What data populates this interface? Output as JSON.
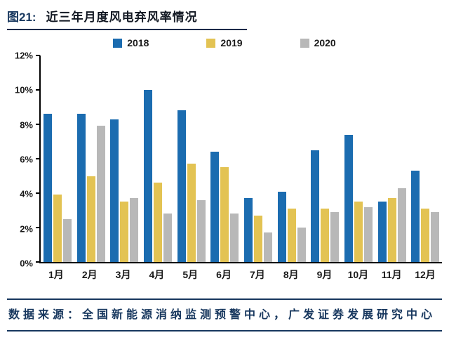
{
  "header": {
    "figure_label": "图21:",
    "title": "近三年月度风电弃风率情况"
  },
  "footer": {
    "source": "数据来源：全国新能源消纳监测预警中心，广发证券发展研究中心"
  },
  "chart_data": {
    "type": "bar",
    "title": "近三年月度风电弃风率情况",
    "categories": [
      "1月",
      "2月",
      "3月",
      "4月",
      "5月",
      "6月",
      "7月",
      "8月",
      "9月",
      "10月",
      "11月",
      "12月"
    ],
    "series": [
      {
        "name": "2018",
        "color": "#1B6CB0",
        "values": [
          8.6,
          8.6,
          8.3,
          10.0,
          8.8,
          6.4,
          3.7,
          4.1,
          6.5,
          7.4,
          3.5,
          5.3
        ]
      },
      {
        "name": "2019",
        "color": "#E3C353",
        "values": [
          3.9,
          5.0,
          3.5,
          4.6,
          5.7,
          5.5,
          2.7,
          3.1,
          3.1,
          3.5,
          3.7,
          3.1
        ]
      },
      {
        "name": "2020",
        "color": "#B8B8B8",
        "values": [
          2.5,
          7.9,
          3.7,
          2.8,
          3.6,
          2.8,
          1.7,
          2.0,
          2.9,
          3.2,
          4.3,
          2.9
        ]
      }
    ],
    "xlabel": "",
    "ylabel": "",
    "ylim": [
      0,
      12
    ],
    "ytick_step": 2,
    "ytick_labels": [
      "0%",
      "2%",
      "4%",
      "6%",
      "8%",
      "10%",
      "12%"
    ],
    "grid": false,
    "legend_position": "top"
  }
}
